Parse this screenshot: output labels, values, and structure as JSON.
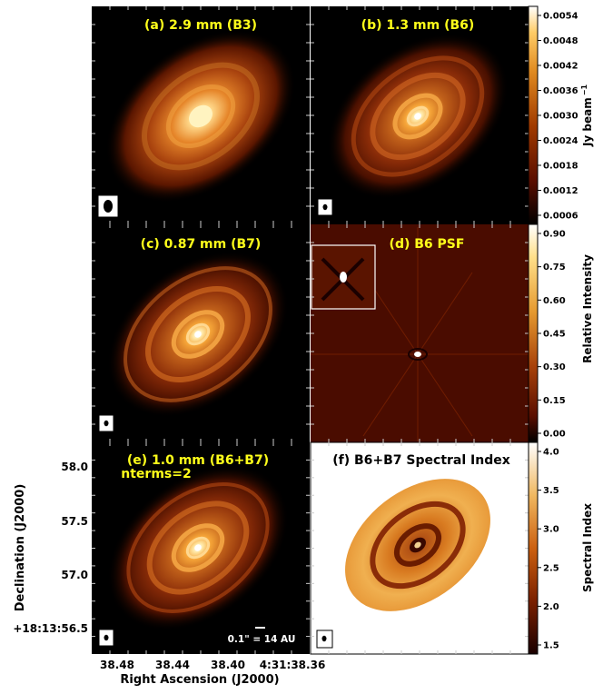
{
  "panels": [
    {
      "id": "a",
      "label": "(a) 2.9 mm (B3)",
      "style": "disk",
      "beam": "large"
    },
    {
      "id": "b",
      "label": "(b) 1.3 mm (B6)",
      "style": "disk",
      "beam": "small"
    },
    {
      "id": "c",
      "label": "(c) 0.87 mm (B7)",
      "style": "disk",
      "beam": "small"
    },
    {
      "id": "d",
      "label": "(d) B6 PSF",
      "style": "psf",
      "beam": "none"
    },
    {
      "id": "e",
      "label": "(e) 1.0 mm (B6+B7)",
      "label2": "nterms=2",
      "style": "disk",
      "beam": "small"
    },
    {
      "id": "f",
      "label": "(f) B6+B7 Spectral Index",
      "style": "index",
      "beam": "small"
    }
  ],
  "colorbars": [
    {
      "id": "flux",
      "label": "Jy beam",
      "label_sup": "−1",
      "ticks": [
        "0.0054",
        "0.0048",
        "0.0042",
        "0.0036",
        "0.0030",
        "0.0024",
        "0.0018",
        "0.0012",
        "0.0006"
      ]
    },
    {
      "id": "psf",
      "label": "Relative Intensity",
      "ticks": [
        "0.90",
        "0.75",
        "0.60",
        "0.45",
        "0.30",
        "0.15",
        "0.00"
      ]
    },
    {
      "id": "index",
      "label": "Spectral Index",
      "ticks": [
        "4.0",
        "3.5",
        "3.0",
        "2.5",
        "2.0",
        "1.5"
      ]
    }
  ],
  "axes": {
    "xlabel": "Right Ascension (J2000)",
    "ylabel": "Declination (J2000)",
    "xticks": [
      "38.48",
      "38.44",
      "38.40",
      "4:31:38.36"
    ],
    "yticks": [
      "58.0",
      "57.5",
      "57.0",
      "+18:13:56.5"
    ]
  },
  "scalebar": "0.1\" = 14 AU",
  "colors": {
    "label_yellow": "#ffff1a",
    "background": "#000000"
  }
}
